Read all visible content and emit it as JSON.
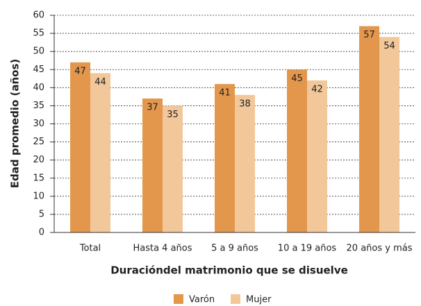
{
  "chart_data": {
    "type": "bar",
    "x_label": "Duracióndel matrimonio que se disuelve",
    "y_label": "Edad promedio (años)",
    "categories": [
      "Total",
      "Hasta 4 años",
      "5 a 9 años",
      "10 a 19 años",
      "20 años y más"
    ],
    "series": [
      {
        "name": "Varón",
        "color": "#e3974c",
        "values": [
          47,
          37,
          41,
          45,
          57
        ]
      },
      {
        "name": "Mujer",
        "color": "#f2c79a",
        "values": [
          44,
          35,
          38,
          42,
          54
        ]
      }
    ],
    "ylim": [
      0,
      60
    ],
    "yticks": [
      0,
      5,
      10,
      15,
      20,
      25,
      30,
      35,
      40,
      45,
      50,
      55,
      60
    ],
    "grid": true,
    "legend": "bottom"
  }
}
